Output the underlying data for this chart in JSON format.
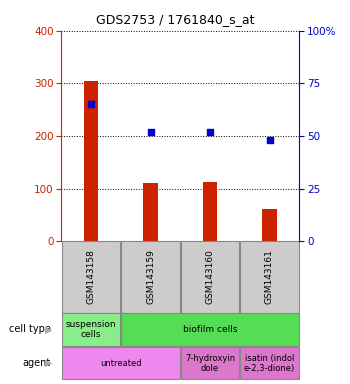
{
  "title": "GDS2753 / 1761840_s_at",
  "samples": [
    "GSM143158",
    "GSM143159",
    "GSM143160",
    "GSM143161"
  ],
  "counts": [
    305,
    110,
    112,
    62
  ],
  "percentiles": [
    65,
    52,
    52,
    48
  ],
  "ylim_left": [
    0,
    400
  ],
  "ylim_right": [
    0,
    100
  ],
  "yticks_left": [
    0,
    100,
    200,
    300,
    400
  ],
  "yticks_right": [
    0,
    25,
    50,
    75,
    100
  ],
  "yticklabels_right": [
    "0",
    "25",
    "50",
    "75",
    "100%"
  ],
  "bar_color": "#cc2200",
  "scatter_color": "#0000cc",
  "cell_type_cells": [
    {
      "text": "suspension\ncells",
      "color": "#88ee88",
      "span": 1
    },
    {
      "text": "biofilm cells",
      "color": "#55dd55",
      "span": 3
    }
  ],
  "agent_cells": [
    {
      "text": "untreated",
      "color": "#ee88ee",
      "span": 2
    },
    {
      "text": "7-hydroxyin\ndole",
      "color": "#dd77cc",
      "span": 1
    },
    {
      "text": "isatin (indol\ne-2,3-dione)",
      "color": "#dd77cc",
      "span": 1
    }
  ],
  "legend_count_color": "#cc2200",
  "legend_pct_color": "#0000cc",
  "axis_left_color": "#cc2200",
  "axis_right_color": "#0000cc",
  "bg_color": "#ffffff",
  "sample_box_color": "#cccccc",
  "bar_width": 0.25
}
